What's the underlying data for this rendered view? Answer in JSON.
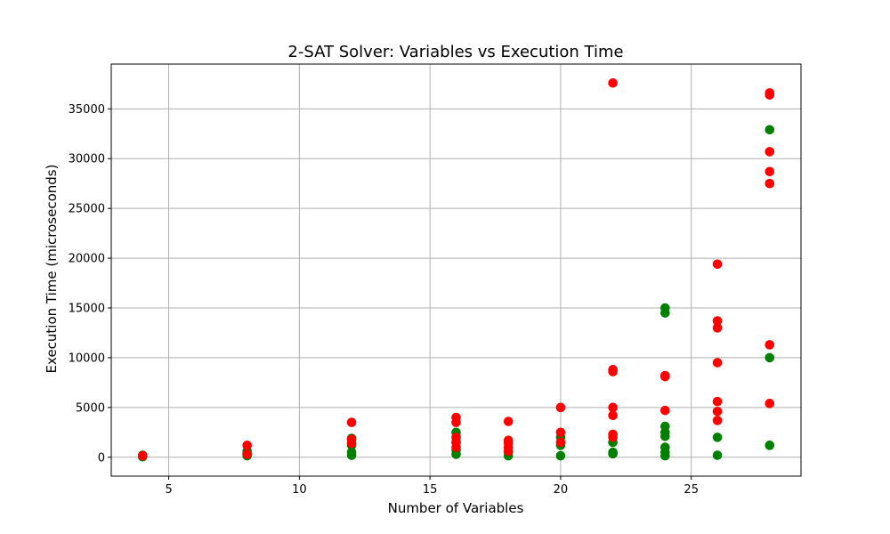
{
  "chart_data": {
    "type": "scatter",
    "title": "2-SAT Solver: Variables vs Execution Time",
    "xlabel": "Number of Variables",
    "ylabel": "Execution Time (microseconds)",
    "xlim": [
      2.8,
      29.2
    ],
    "ylim": [
      -1900,
      39500
    ],
    "xticks": [
      5,
      10,
      15,
      20,
      25
    ],
    "yticks": [
      0,
      5000,
      10000,
      15000,
      20000,
      25000,
      30000,
      35000
    ],
    "grid": true,
    "legend": "none",
    "series": [
      {
        "color": "#008000",
        "points": [
          [
            4,
            50
          ],
          [
            4,
            120
          ],
          [
            4,
            200
          ],
          [
            8,
            150
          ],
          [
            8,
            350
          ],
          [
            8,
            600
          ],
          [
            12,
            200
          ],
          [
            12,
            500
          ],
          [
            12,
            1200
          ],
          [
            12,
            1900
          ],
          [
            16,
            300
          ],
          [
            16,
            700
          ],
          [
            16,
            1500
          ],
          [
            16,
            2500
          ],
          [
            18,
            150
          ],
          [
            18,
            500
          ],
          [
            20,
            150
          ],
          [
            20,
            1200
          ],
          [
            20,
            2000
          ],
          [
            22,
            350
          ],
          [
            22,
            500
          ],
          [
            22,
            1500
          ],
          [
            24,
            150
          ],
          [
            24,
            500
          ],
          [
            24,
            1000
          ],
          [
            24,
            2100
          ],
          [
            24,
            2500
          ],
          [
            24,
            3100
          ],
          [
            24,
            14500
          ],
          [
            24,
            15000
          ],
          [
            26,
            200
          ],
          [
            26,
            2000
          ],
          [
            28,
            1200
          ],
          [
            28,
            10000
          ],
          [
            28,
            32900
          ]
        ]
      },
      {
        "color": "#ff0000",
        "points": [
          [
            4,
            150
          ],
          [
            8,
            300
          ],
          [
            8,
            1200
          ],
          [
            12,
            1400
          ],
          [
            12,
            1800
          ],
          [
            12,
            3500
          ],
          [
            16,
            1000
          ],
          [
            16,
            1500
          ],
          [
            16,
            2000
          ],
          [
            16,
            3500
          ],
          [
            16,
            4000
          ],
          [
            18,
            600
          ],
          [
            18,
            1000
          ],
          [
            18,
            1400
          ],
          [
            18,
            1700
          ],
          [
            18,
            3600
          ],
          [
            20,
            1500
          ],
          [
            20,
            2500
          ],
          [
            20,
            5000
          ],
          [
            22,
            2000
          ],
          [
            22,
            2300
          ],
          [
            22,
            4200
          ],
          [
            22,
            5000
          ],
          [
            22,
            8600
          ],
          [
            22,
            8800
          ],
          [
            22,
            37600
          ],
          [
            24,
            4700
          ],
          [
            24,
            8100
          ],
          [
            24,
            8200
          ],
          [
            26,
            3700
          ],
          [
            26,
            4600
          ],
          [
            26,
            5600
          ],
          [
            26,
            9500
          ],
          [
            26,
            13000
          ],
          [
            26,
            13700
          ],
          [
            26,
            19400
          ],
          [
            28,
            5400
          ],
          [
            28,
            11300
          ],
          [
            28,
            27500
          ],
          [
            28,
            28700
          ],
          [
            28,
            30700
          ],
          [
            28,
            36400
          ],
          [
            28,
            36600
          ]
        ]
      }
    ]
  }
}
